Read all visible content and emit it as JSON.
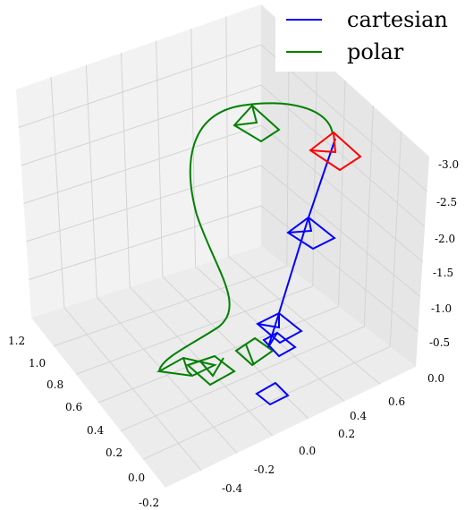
{
  "chart_data": {
    "type": "line3d",
    "title": "",
    "legend": {
      "placement": "top-right",
      "entries": [
        {
          "label": "cartesian",
          "color": "#0000ff"
        },
        {
          "label": "polar",
          "color": "#008000"
        }
      ]
    },
    "axes": {
      "x": {
        "ticks": [
          "-0.4",
          "-0.2",
          "0.0",
          "0.2",
          "0.4",
          "0.6"
        ],
        "lim": [
          -0.6,
          0.6
        ]
      },
      "y": {
        "ticks": [
          "-0.2",
          "0.0",
          "0.2",
          "0.4",
          "0.6",
          "0.8",
          "1.0",
          "1.2"
        ],
        "lim": [
          -0.2,
          1.2
        ]
      },
      "z": {
        "ticks": [
          "0.0",
          "-0.5",
          "-1.0",
          "-1.5",
          "-2.0",
          "-2.5",
          "-3.0"
        ],
        "lim": [
          0,
          -3.0
        ]
      },
      "grid": true
    },
    "colors": {
      "cartesian": "#0000ff",
      "polar": "#008000",
      "current": "#ff0000"
    }
  }
}
